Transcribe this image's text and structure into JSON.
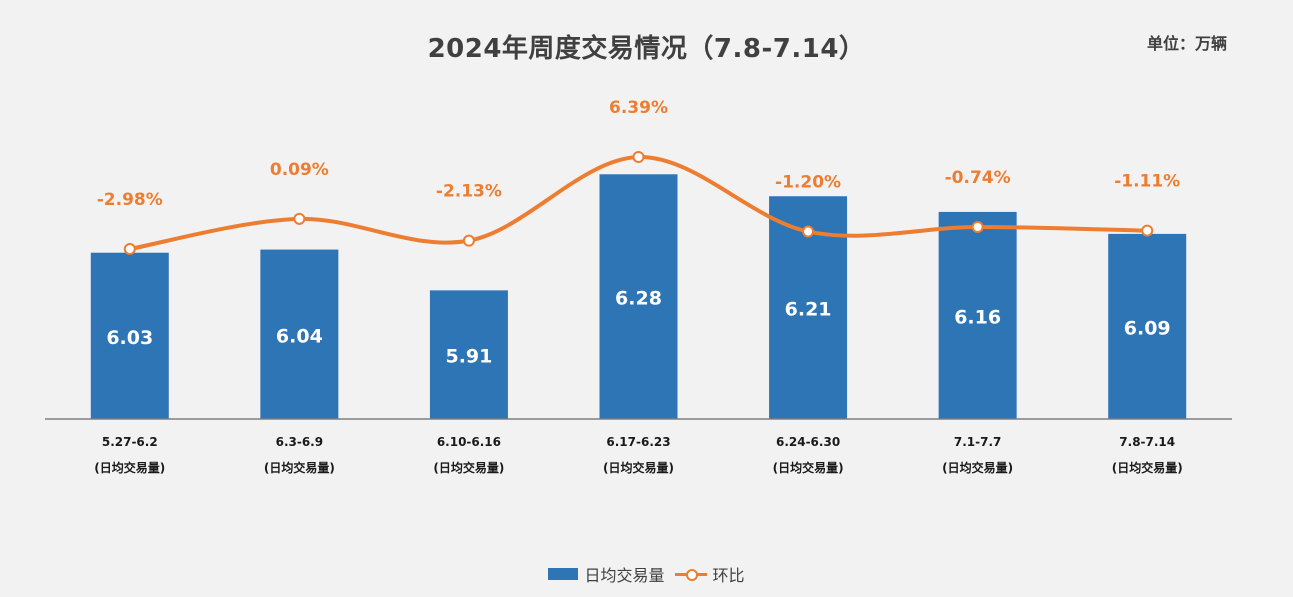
{
  "chart_data": {
    "type": "bar",
    "title": "2024年周度交易情况（7.8-7.14）",
    "unit": "单位：万辆",
    "categories": [
      {
        "line1": "5.27-6.2",
        "line2": "(日均交易量)"
      },
      {
        "line1": "6.3-6.9",
        "line2": "(日均交易量)"
      },
      {
        "line1": "6.10-6.16",
        "line2": "(日均交易量)"
      },
      {
        "line1": "6.17-6.23",
        "line2": "(日均交易量)"
      },
      {
        "line1": "6.24-6.30",
        "line2": "(日均交易量)"
      },
      {
        "line1": "7.1-7.7",
        "line2": "(日均交易量)"
      },
      {
        "line1": "7.8-7.14",
        "line2": "(日均交易量)"
      }
    ],
    "series": [
      {
        "name": "日均交易量",
        "kind": "bar",
        "color": "#2e75b6",
        "values": [
          6.03,
          6.04,
          5.91,
          6.28,
          6.21,
          6.16,
          6.09
        ],
        "labels": [
          "6.03",
          "6.04",
          "5.91",
          "6.28",
          "6.21",
          "6.16",
          "6.09"
        ]
      },
      {
        "name": "环比",
        "kind": "line",
        "color": "#ed7d31",
        "values": [
          -2.98,
          0.09,
          -2.13,
          6.39,
          -1.2,
          -0.74,
          -1.11
        ],
        "labels": [
          "-2.98%",
          "0.09%",
          "-2.13%",
          "6.39%",
          "-1.20%",
          "-0.74%",
          "-1.11%"
        ]
      }
    ],
    "legend_position": "bottom-center",
    "grid": false
  }
}
